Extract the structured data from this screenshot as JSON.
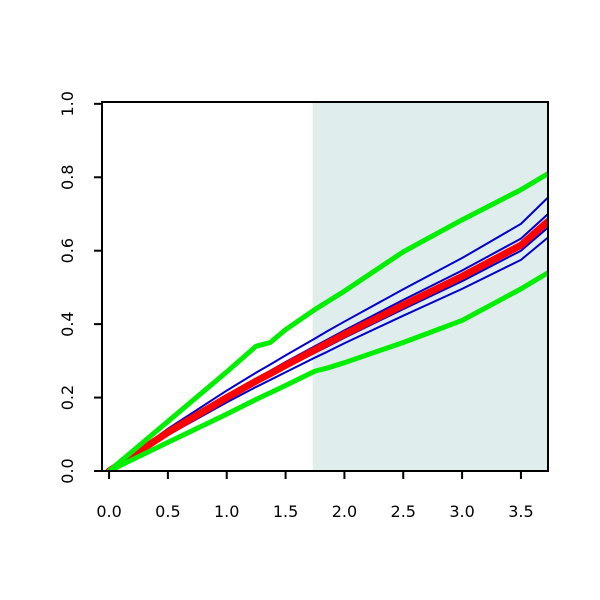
{
  "chart_data": {
    "type": "line",
    "x": [
      0,
      0.5,
      1,
      1.25,
      1.37,
      1.5,
      1.75,
      1.85,
      2,
      2.5,
      3,
      3.5,
      3.73
    ],
    "series": [
      {
        "color": "#0000cc",
        "width": 2,
        "values": [
          0,
          0.115,
          0.219,
          0.268,
          0.29,
          0.315,
          0.361,
          0.38,
          0.407,
          0.495,
          0.58,
          0.673,
          0.745
        ]
      },
      {
        "color": "#0000cc",
        "width": 2,
        "values": [
          0,
          0.108,
          0.206,
          0.252,
          0.273,
          0.297,
          0.34,
          0.357,
          0.383,
          0.466,
          0.546,
          0.633,
          0.7
        ]
      },
      {
        "color": "#0000cc",
        "width": 2,
        "values": [
          0,
          0.102,
          0.195,
          0.239,
          0.258,
          0.281,
          0.322,
          0.338,
          0.363,
          0.441,
          0.517,
          0.6,
          0.663
        ]
      },
      {
        "color": "#0000cc",
        "width": 2,
        "values": [
          0,
          0.098,
          0.187,
          0.229,
          0.248,
          0.269,
          0.309,
          0.324,
          0.348,
          0.423,
          0.496,
          0.575,
          0.636
        ]
      },
      {
        "color": "#ff0000",
        "width": 7,
        "values": [
          0,
          0.105,
          0.2,
          0.245,
          0.265,
          0.288,
          0.33,
          0.347,
          0.372,
          0.452,
          0.53,
          0.615,
          0.68
        ]
      },
      {
        "color": "#00ee00",
        "width": 5,
        "values": [
          0,
          0.135,
          0.27,
          0.34,
          0.35,
          0.385,
          0.44,
          0.46,
          0.49,
          0.597,
          0.684,
          0.766,
          0.81
        ]
      },
      {
        "color": "#00ee00",
        "width": 5,
        "values": [
          0,
          0.078,
          0.155,
          0.195,
          0.213,
          0.233,
          0.272,
          0.28,
          0.295,
          0.35,
          0.41,
          0.496,
          0.54
        ]
      }
    ],
    "shaded_xrange": [
      1.73,
      3.73
    ],
    "shade_color": "#e0eded",
    "xlim": [
      -0.06,
      3.73
    ],
    "ylim": [
      0,
      1.005
    ],
    "xticks": [
      {
        "value": 0,
        "label": "0.0"
      },
      {
        "value": 0.5,
        "label": "0.5"
      },
      {
        "value": 1,
        "label": "1.0"
      },
      {
        "value": 1.5,
        "label": "1.5"
      },
      {
        "value": 2,
        "label": "2.0"
      },
      {
        "value": 2.5,
        "label": "2.5"
      },
      {
        "value": 3,
        "label": "3.0"
      },
      {
        "value": 3.5,
        "label": "3.5"
      }
    ],
    "yticks": [
      {
        "value": 0,
        "label": "0.0"
      },
      {
        "value": 0.2,
        "label": "0.2"
      },
      {
        "value": 0.4,
        "label": "0.4"
      },
      {
        "value": 0.6,
        "label": "0.6"
      },
      {
        "value": 0.8,
        "label": "0.8"
      },
      {
        "value": 1,
        "label": "1.0"
      }
    ]
  }
}
